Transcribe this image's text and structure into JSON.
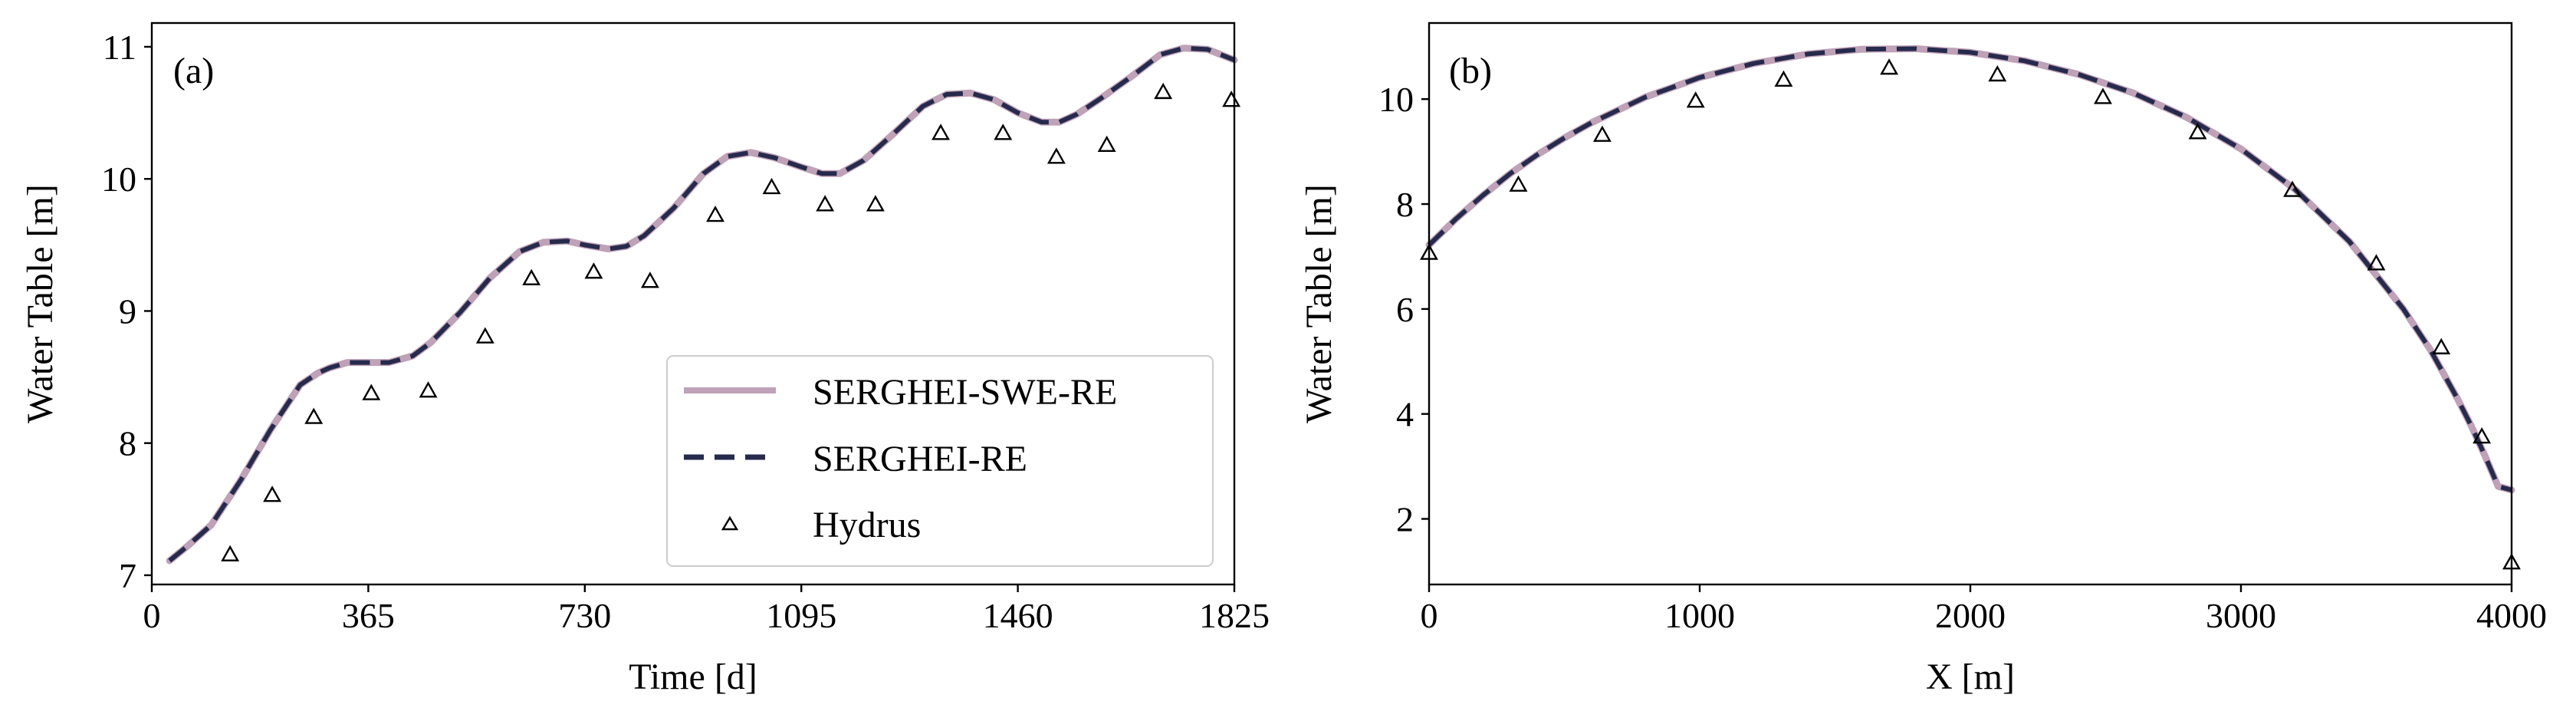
{
  "chart_data": [
    {
      "panel": "(a)",
      "type": "line",
      "xlabel": "Time [d]",
      "ylabel": "Water Table [m]",
      "xlim": [
        0,
        1825
      ],
      "ylim": [
        6.93,
        11.18
      ],
      "xticks": [
        0,
        365,
        730,
        1095,
        1460,
        1825
      ],
      "yticks": [
        7,
        8,
        9,
        10,
        11
      ],
      "legend_position": "lower-right",
      "series": [
        {
          "name": "SERGHEI-SWE-RE",
          "style": "solid",
          "color": "#bfa2b7",
          "x": [
            30,
            60,
            100,
            150,
            200,
            250,
            280,
            300,
            330,
            365,
            400,
            440,
            470,
            520,
            570,
            620,
            660,
            700,
            730,
            770,
            800,
            830,
            880,
            930,
            970,
            1010,
            1050,
            1095,
            1130,
            1160,
            1200,
            1250,
            1300,
            1340,
            1380,
            1420,
            1460,
            1500,
            1530,
            1560,
            1600,
            1650,
            1700,
            1740,
            1780,
            1825
          ],
          "values": [
            7.11,
            7.22,
            7.38,
            7.72,
            8.1,
            8.44,
            8.53,
            8.57,
            8.61,
            8.61,
            8.61,
            8.66,
            8.76,
            8.99,
            9.25,
            9.45,
            9.52,
            9.53,
            9.5,
            9.47,
            9.49,
            9.57,
            9.78,
            10.04,
            10.17,
            10.2,
            10.16,
            10.09,
            10.04,
            10.04,
            10.14,
            10.34,
            10.55,
            10.64,
            10.65,
            10.6,
            10.5,
            10.43,
            10.43,
            10.49,
            10.61,
            10.77,
            10.94,
            10.99,
            10.98,
            10.9
          ]
        },
        {
          "name": "SERGHEI-RE",
          "style": "dashed",
          "color": "#262a4d",
          "x": [
            30,
            60,
            100,
            150,
            200,
            250,
            280,
            300,
            330,
            365,
            400,
            440,
            470,
            520,
            570,
            620,
            660,
            700,
            730,
            770,
            800,
            830,
            880,
            930,
            970,
            1010,
            1050,
            1095,
            1130,
            1160,
            1200,
            1250,
            1300,
            1340,
            1380,
            1420,
            1460,
            1500,
            1530,
            1560,
            1600,
            1650,
            1700,
            1740,
            1780,
            1825
          ],
          "values": [
            7.11,
            7.22,
            7.38,
            7.72,
            8.1,
            8.44,
            8.53,
            8.57,
            8.61,
            8.61,
            8.61,
            8.66,
            8.76,
            8.99,
            9.25,
            9.45,
            9.52,
            9.53,
            9.5,
            9.47,
            9.49,
            9.57,
            9.78,
            10.04,
            10.17,
            10.2,
            10.16,
            10.09,
            10.04,
            10.04,
            10.14,
            10.34,
            10.55,
            10.64,
            10.65,
            10.6,
            10.5,
            10.43,
            10.43,
            10.49,
            10.61,
            10.77,
            10.94,
            10.99,
            10.98,
            10.9
          ]
        },
        {
          "name": "Hydrus",
          "style": "markers",
          "marker": "triangle-open",
          "color": "#000000",
          "x": [
            132,
            203,
            273,
            370,
            466,
            562,
            640,
            745,
            840,
            950,
            1045,
            1135,
            1220,
            1330,
            1435,
            1525,
            1610,
            1705,
            1820
          ],
          "values": [
            7.15,
            7.6,
            8.19,
            8.37,
            8.39,
            8.8,
            9.24,
            9.29,
            9.22,
            9.72,
            9.93,
            9.8,
            9.8,
            10.34,
            10.34,
            10.16,
            10.25,
            10.65,
            10.59
          ]
        }
      ]
    },
    {
      "panel": "(b)",
      "type": "line",
      "xlabel": "X [m]",
      "ylabel": "Water Table [m]",
      "xlim": [
        0,
        4000
      ],
      "ylim": [
        0.75,
        11.45
      ],
      "xticks": [
        0,
        1000,
        2000,
        3000,
        4000
      ],
      "yticks": [
        2,
        4,
        6,
        8,
        10
      ],
      "series": [
        {
          "name": "SERGHEI-SWE-RE",
          "style": "solid",
          "color": "#bfa2b7",
          "x": [
            0,
            100,
            200,
            300,
            400,
            500,
            600,
            800,
            1000,
            1200,
            1400,
            1600,
            1800,
            2000,
            2200,
            2400,
            2600,
            2800,
            3000,
            3200,
            3400,
            3600,
            3700,
            3800,
            3850,
            3900,
            3950,
            4000
          ],
          "values": [
            7.22,
            7.72,
            8.17,
            8.58,
            8.94,
            9.26,
            9.55,
            10.04,
            10.41,
            10.68,
            10.86,
            10.95,
            10.96,
            10.89,
            10.73,
            10.47,
            10.12,
            9.65,
            9.05,
            8.28,
            7.29,
            6.0,
            5.22,
            4.29,
            3.78,
            3.22,
            2.62,
            2.55
          ]
        },
        {
          "name": "SERGHEI-RE",
          "style": "dashed",
          "color": "#262a4d",
          "x": [
            0,
            100,
            200,
            300,
            400,
            500,
            600,
            800,
            1000,
            1200,
            1400,
            1600,
            1800,
            2000,
            2200,
            2400,
            2600,
            2800,
            3000,
            3200,
            3400,
            3600,
            3700,
            3800,
            3850,
            3900,
            3950,
            4000
          ],
          "values": [
            7.22,
            7.72,
            8.17,
            8.58,
            8.94,
            9.26,
            9.55,
            10.04,
            10.41,
            10.68,
            10.86,
            10.95,
            10.96,
            10.89,
            10.73,
            10.47,
            10.12,
            9.65,
            9.05,
            8.28,
            7.29,
            6.0,
            5.22,
            4.29,
            3.78,
            3.22,
            2.62,
            2.55
          ]
        },
        {
          "name": "Hydrus",
          "style": "markers",
          "marker": "triangle-open",
          "color": "#000000",
          "x": [
            0,
            330,
            640,
            985,
            1310,
            1700,
            2100,
            2490,
            2840,
            3190,
            3500,
            3740,
            3890,
            4000
          ],
          "values": [
            7.05,
            8.35,
            9.3,
            9.95,
            10.35,
            10.58,
            10.45,
            10.02,
            9.35,
            8.25,
            6.85,
            5.25,
            3.55,
            1.15
          ]
        }
      ]
    }
  ]
}
